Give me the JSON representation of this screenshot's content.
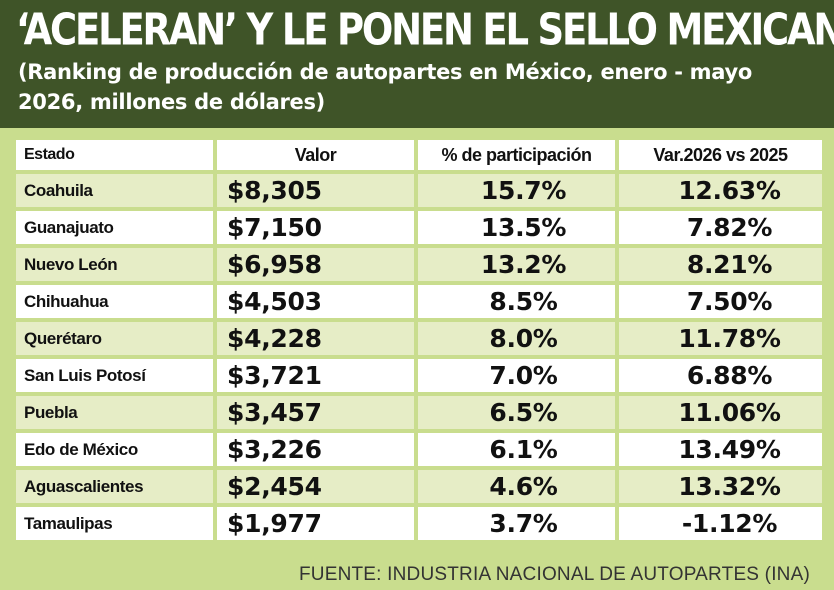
{
  "header": {
    "title": "‘ACELERAN’ Y LE PONEN EL SELLO MEXICANO",
    "subtitle": "(Ranking de producción de autopartes en México, enero - mayo 2026, millones de dólares)"
  },
  "colors": {
    "header_bg": "#3f5428",
    "page_bg": "#c9dd8e",
    "row_alt": "#e6edc6",
    "row_plain": "#ffffff"
  },
  "chart_data": {
    "type": "table",
    "title": "‘ACELERAN’ Y LE PONEN EL SELLO MEXICANO",
    "subtitle": "(Ranking de producción de autopartes en México, enero - mayo 2026, millones de dólares)",
    "columns": [
      "Estado",
      "Valor",
      "% de participación",
      "Var.2026 vs 2025"
    ],
    "rows": [
      {
        "estado": "Coahuila",
        "valor": "$8,305",
        "participacion": "15.7%",
        "variacion": "12.63%"
      },
      {
        "estado": "Guanajuato",
        "valor": "$7,150",
        "participacion": "13.5%",
        "variacion": "7.82%"
      },
      {
        "estado": "Nuevo León",
        "valor": "$6,958",
        "participacion": "13.2%",
        "variacion": "8.21%"
      },
      {
        "estado": "Chihuahua",
        "valor": "$4,503",
        "participacion": "8.5%",
        "variacion": "7.50%"
      },
      {
        "estado": "Querétaro",
        "valor": "$4,228",
        "participacion": "8.0%",
        "variacion": "11.78%"
      },
      {
        "estado": "San Luis Potosí",
        "valor": "$3,721",
        "participacion": "7.0%",
        "variacion": "6.88%"
      },
      {
        "estado": "Puebla",
        "valor": "$3,457",
        "participacion": "6.5%",
        "variacion": "11.06%"
      },
      {
        "estado": "Edo de México",
        "valor": "$3,226",
        "participacion": "6.1%",
        "variacion": "13.49%"
      },
      {
        "estado": "Aguascalientes",
        "valor": "$2,454",
        "participacion": "4.6%",
        "variacion": "13.32%"
      },
      {
        "estado": "Tamaulipas",
        "valor": "$1,977",
        "participacion": "3.7%",
        "variacion": "-1.12%"
      }
    ]
  },
  "source": "FUENTE: INDUSTRIA NACIONAL DE AUTOPARTES (INA)"
}
